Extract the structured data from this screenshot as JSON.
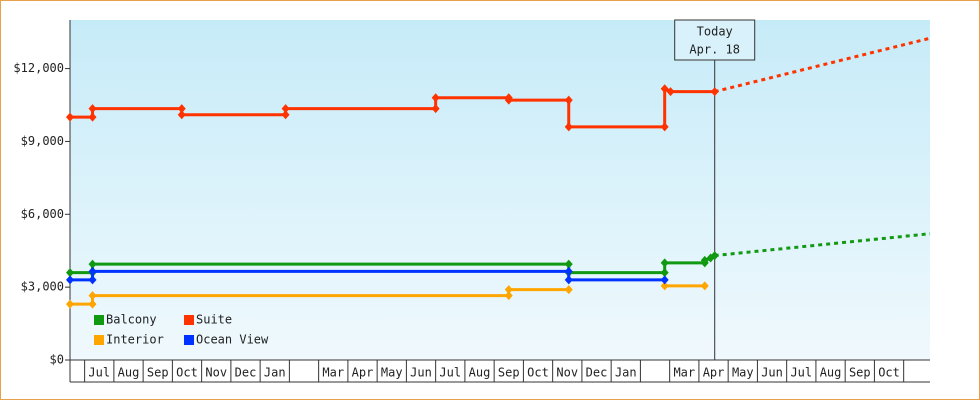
{
  "chart_data": {
    "type": "line",
    "xlim": [
      -0.5,
      28.9
    ],
    "xticks": [
      {
        "value": 0,
        "label": "Jul"
      },
      {
        "value": 1,
        "label": "Aug"
      },
      {
        "value": 2,
        "label": "Sep"
      },
      {
        "value": 3,
        "label": "Oct"
      },
      {
        "value": 4,
        "label": "Nov"
      },
      {
        "value": 5,
        "label": "Dec"
      },
      {
        "value": 6,
        "label": "Jan"
      },
      {
        "value": 7,
        "label": null
      },
      {
        "value": 8,
        "label": "Mar"
      },
      {
        "value": 9,
        "label": "Apr"
      },
      {
        "value": 10,
        "label": "May"
      },
      {
        "value": 11,
        "label": "Jun"
      },
      {
        "value": 12,
        "label": "Jul"
      },
      {
        "value": 13,
        "label": "Aug"
      },
      {
        "value": 14,
        "label": "Sep"
      },
      {
        "value": 15,
        "label": "Oct"
      },
      {
        "value": 16,
        "label": "Nov"
      },
      {
        "value": 17,
        "label": "Dec"
      },
      {
        "value": 18,
        "label": "Jan"
      },
      {
        "value": 19,
        "label": null
      },
      {
        "value": 20,
        "label": "Mar"
      },
      {
        "value": 21,
        "label": "Apr"
      },
      {
        "value": 22,
        "label": "May"
      },
      {
        "value": 23,
        "label": "Jun"
      },
      {
        "value": 24,
        "label": "Jul"
      },
      {
        "value": 25,
        "label": "Aug"
      },
      {
        "value": 26,
        "label": "Sep"
      },
      {
        "value": 27,
        "label": "Oct"
      },
      {
        "value": 28,
        "label": null
      }
    ],
    "ylim": [
      0,
      14000
    ],
    "yticks": [
      {
        "value": 0,
        "label": "$0"
      },
      {
        "value": 3000,
        "label": "$3,000"
      },
      {
        "value": 6000,
        "label": "$6,000"
      },
      {
        "value": 9000,
        "label": "$9,000"
      },
      {
        "value": 12000,
        "label": "$12,000"
      }
    ],
    "series": [
      {
        "name": "Balcony",
        "color": "#119911",
        "x": [
          -0.5,
          0.27,
          0.27,
          16.55,
          16.55,
          19.83,
          19.83,
          21.2,
          21.2,
          21.4,
          21.54
        ],
        "values": [
          3600,
          3600,
          3950,
          3950,
          3600,
          3600,
          4000,
          4000,
          4100,
          4200,
          4300
        ],
        "forecast": {
          "x": [
            21.54,
            28.9
          ],
          "values": [
            4300,
            5200
          ]
        }
      },
      {
        "name": "Suite",
        "color": "#ff3300",
        "x": [
          -0.5,
          0.27,
          0.27,
          3.32,
          3.32,
          6.87,
          6.87,
          12.0,
          12.0,
          14.5,
          14.5,
          16.55,
          16.55,
          19.83,
          19.83,
          20.03,
          21.54
        ],
        "values": [
          10000,
          10000,
          10350,
          10350,
          10100,
          10100,
          10350,
          10350,
          10800,
          10800,
          10700,
          10700,
          9600,
          9600,
          11170,
          11050,
          11050
        ],
        "forecast": {
          "x": [
            21.54,
            28.9
          ],
          "values": [
            11050,
            13250
          ]
        }
      },
      {
        "name": "Interior",
        "color": "#ffa500",
        "x": [
          -0.5,
          0.27,
          0.27,
          14.5,
          14.5,
          16.55,
          18.0,
          19.83,
          21.2
        ],
        "values": [
          2300,
          2300,
          2650,
          2650,
          2900,
          2900,
          null,
          3050,
          3050
        ]
      },
      {
        "name": "Ocean View",
        "color": "#0033ff",
        "x": [
          -0.5,
          0.27,
          0.27,
          16.55,
          16.55,
          19.83
        ],
        "values": [
          3300,
          3300,
          3650,
          3650,
          3300,
          3300
        ]
      }
    ],
    "annotation": {
      "x": 21.54,
      "lines": [
        "Today",
        "Apr. 18"
      ]
    }
  }
}
